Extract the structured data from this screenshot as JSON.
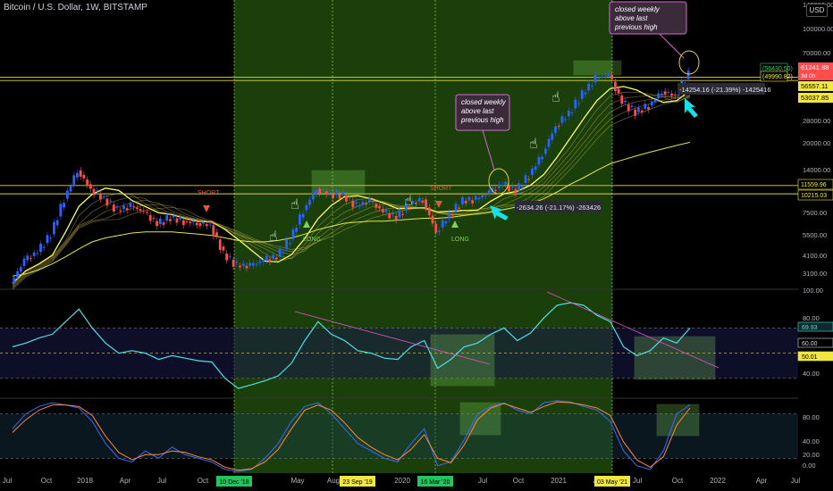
{
  "title": "Bitcoin / U.S. Dollar, 1W, BITSTAMP",
  "currency_badge": "USD",
  "colors": {
    "background": "#000000",
    "zone_green": "#1f4a0c",
    "up": "#2962ff",
    "down": "#ff4d4d",
    "ribbon": "#ffff66",
    "ema200": "#e6e64d",
    "rsi": "#4de1e6",
    "stoch_k": "#3a6bff",
    "stoch_d": "#ff8a3a",
    "hline": "#e6d430",
    "arrow": "#18e0e6",
    "callout": "#d16bd1"
  },
  "x_axis": {
    "ticks": [
      "Jul",
      "Oct",
      "2018",
      "Apr",
      "Jul",
      "Oct",
      "May",
      "Aug",
      "2020",
      "Jul",
      "Oct",
      "2021",
      "Apr",
      "Jul",
      "Oct",
      "2022",
      "Apr",
      "Jul"
    ],
    "date_markers": [
      {
        "label": "10 Dec '18",
        "color": "#22c55e"
      },
      {
        "label": "23 Sep '19",
        "color": "#f2e640"
      },
      {
        "label": "16 Mar '20",
        "color": "#22c55e"
      },
      {
        "label": "03 May '21",
        "color": "#f2e640"
      }
    ]
  },
  "price_axis": {
    "scale": "log",
    "ticks": [
      "140000.00",
      "100000.00",
      "70000.00",
      "40000.00",
      "28000.00",
      "20000.00",
      "14000.00",
      "7500.00",
      "5500.00",
      "4100.00",
      "3100.00"
    ],
    "labels": [
      {
        "text": "(56430.50)",
        "color": "#2ed16b",
        "style": "outline"
      },
      {
        "text": "(49990.82)",
        "color": "#f2e640",
        "style": "outline"
      },
      {
        "text": "61241.88",
        "sub": "3d 0h",
        "color": "#ff4d4d",
        "style": "fill"
      },
      {
        "text": "56557.11",
        "color": "#f2e640",
        "style": "fill"
      },
      {
        "text": "53037.85",
        "color": "#f2e640",
        "style": "fill"
      },
      {
        "text": "11559.96",
        "color": "#f2e640",
        "style": "outline"
      },
      {
        "text": "10215.03",
        "color": "#f2e640",
        "style": "outline"
      }
    ]
  },
  "rsi_axis": {
    "ticks": [
      "100.00",
      "80.00",
      "40.00"
    ],
    "labels": [
      {
        "text": "69.93",
        "color": "#4de1e6"
      },
      {
        "text": "60.00",
        "color": "#d1d4dc"
      },
      {
        "text": "50.01",
        "color": "#f2e640"
      }
    ]
  },
  "stoch_axis": {
    "ticks": [
      "80.00",
      "40.00",
      "20.00",
      "0.00"
    ]
  },
  "annotations": {
    "callouts": [
      "closed weekly above last previous high",
      "closed weekly above last previous high"
    ],
    "shorts": [
      "SHORT",
      "SHORT"
    ],
    "longs": [
      "LONG",
      "LONG"
    ],
    "measures": [
      "-2634.26 (-21.17%) -263426",
      "-14254.16 (-21.39%) -1425416"
    ]
  },
  "chart_data": {
    "type": "candlestick",
    "scale": "log",
    "ylim": [
      2500,
      150000
    ],
    "series": [
      {
        "name": "price",
        "x": [
          "2017-07",
          "2017-08",
          "2017-09",
          "2017-10",
          "2017-11",
          "2017-12",
          "2018-01",
          "2018-02",
          "2018-03",
          "2018-04",
          "2018-05",
          "2018-06",
          "2018-07",
          "2018-08",
          "2018-09",
          "2018-10",
          "2018-11",
          "2018-12",
          "2019-01",
          "2019-02",
          "2019-03",
          "2019-04",
          "2019-05",
          "2019-06",
          "2019-07",
          "2019-08",
          "2019-09",
          "2019-10",
          "2019-11",
          "2019-12",
          "2020-01",
          "2020-02",
          "2020-03",
          "2020-04",
          "2020-05",
          "2020-06",
          "2020-07",
          "2020-08",
          "2020-09",
          "2020-10",
          "2020-11",
          "2020-12",
          "2021-01",
          "2021-02",
          "2021-03",
          "2021-04",
          "2021-05",
          "2021-06",
          "2021-07",
          "2021-08",
          "2021-09",
          "2021-10"
        ],
        "values": [
          2700,
          3800,
          4300,
          5600,
          9500,
          14500,
          11000,
          9500,
          8000,
          8500,
          7800,
          6500,
          7200,
          6800,
          6600,
          6400,
          4200,
          3500,
          3500,
          3800,
          4000,
          5200,
          8000,
          11000,
          10200,
          10000,
          8500,
          9200,
          7800,
          7200,
          8800,
          9400,
          5800,
          7500,
          9200,
          9400,
          10500,
          11800,
          10700,
          13500,
          18500,
          28000,
          34000,
          45000,
          57000,
          60000,
          40000,
          34500,
          38000,
          47000,
          44000,
          61240
        ]
      },
      {
        "name": "ema200",
        "values": [
          3000,
          3100,
          3300,
          3600,
          4000,
          4500,
          5000,
          5300,
          5500,
          5700,
          5800,
          5800,
          5800,
          5700,
          5600,
          5500,
          5300,
          5100,
          5000,
          5000,
          5100,
          5300,
          5600,
          6000,
          6300,
          6600,
          6700,
          6800,
          6800,
          6900,
          7000,
          7100,
          7100,
          7200,
          7400,
          7600,
          7800,
          8100,
          8400,
          8800,
          9500,
          10500,
          11800,
          13000,
          14500,
          16000,
          17000,
          18000,
          19000,
          20000,
          21000,
          22000
        ]
      }
    ],
    "rsi": {
      "ylim": [
        15,
        100
      ],
      "values": [
        55,
        58,
        62,
        65,
        75,
        85,
        70,
        58,
        50,
        52,
        50,
        45,
        48,
        46,
        44,
        43,
        30,
        22,
        25,
        28,
        32,
        42,
        60,
        75,
        65,
        60,
        52,
        50,
        46,
        45,
        55,
        60,
        38,
        45,
        55,
        58,
        65,
        70,
        60,
        66,
        78,
        88,
        90,
        88,
        80,
        75,
        55,
        48,
        52,
        62,
        58,
        70
      ]
    },
    "stoch": {
      "ylim": [
        0,
        100
      ],
      "k": [
        60,
        80,
        90,
        95,
        92,
        88,
        70,
        40,
        20,
        15,
        30,
        20,
        35,
        25,
        20,
        15,
        5,
        2,
        5,
        20,
        40,
        70,
        90,
        95,
        80,
        60,
        40,
        30,
        20,
        15,
        40,
        60,
        10,
        15,
        45,
        80,
        90,
        95,
        85,
        80,
        95,
        98,
        96,
        90,
        85,
        70,
        30,
        10,
        5,
        30,
        80,
        92
      ],
      "d": [
        55,
        72,
        85,
        92,
        92,
        90,
        78,
        50,
        28,
        18,
        25,
        25,
        30,
        28,
        22,
        18,
        8,
        4,
        6,
        15,
        32,
        60,
        85,
        92,
        85,
        68,
        48,
        35,
        25,
        18,
        32,
        52,
        20,
        14,
        38,
        72,
        88,
        94,
        88,
        82,
        90,
        96,
        95,
        92,
        88,
        78,
        42,
        18,
        8,
        22,
        65,
        88
      ]
    }
  }
}
